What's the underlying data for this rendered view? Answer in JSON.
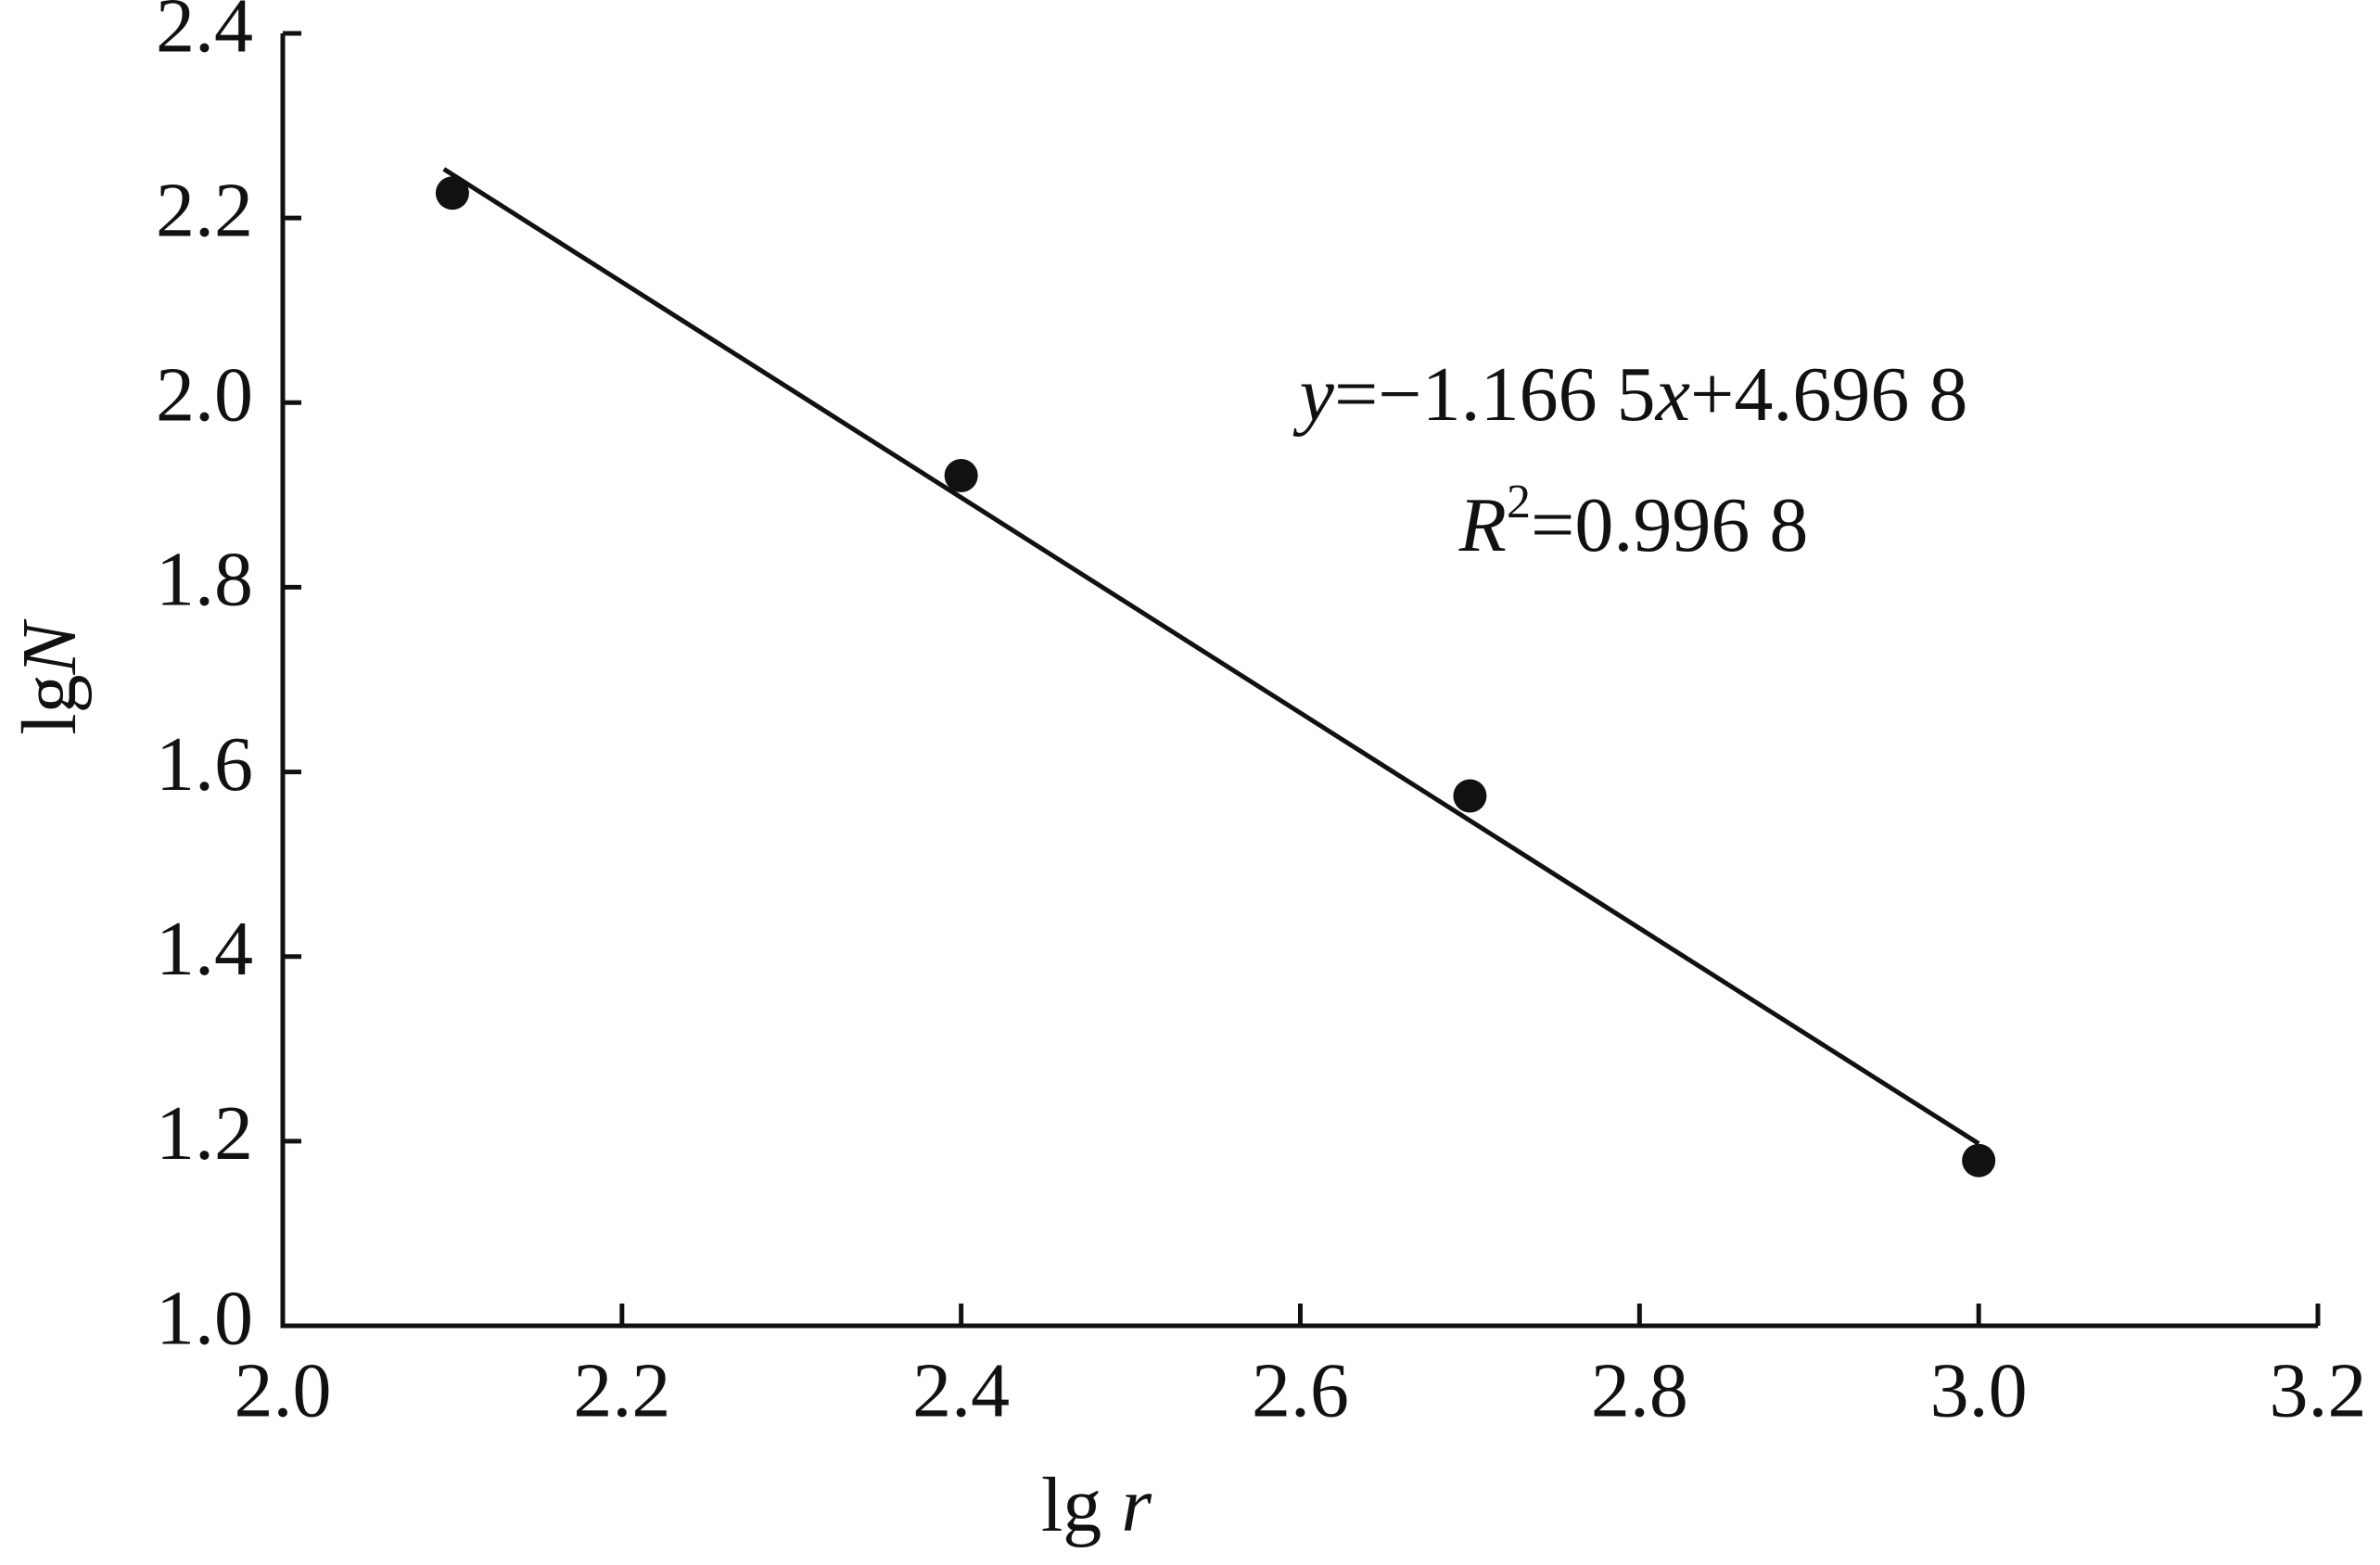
{
  "chart_data": {
    "type": "scatter",
    "x": [
      2.1,
      2.4,
      2.7,
      3.0
    ],
    "values": [
      2.227,
      1.921,
      1.574,
      1.179
    ],
    "color": "#111111",
    "xlim": [
      2.0,
      3.2
    ],
    "ylim": [
      1.0,
      2.4
    ],
    "xticks": [
      {
        "value": 2.0,
        "label": "2.0"
      },
      2.2,
      2.4,
      2.6,
      2.8,
      {
        "value": 3.0,
        "label": "3.0"
      },
      3.2
    ],
    "yticks": [
      {
        "value": 1.0,
        "label": "1.0"
      },
      1.2,
      1.4,
      1.6,
      1.8,
      {
        "value": 2.0,
        "label": "2.0"
      },
      2.2,
      2.4
    ],
    "x_label": [
      {
        "text": "lg "
      },
      {
        "text": "r",
        "italic": true
      }
    ],
    "y_label": [
      {
        "text": "lg"
      },
      {
        "text": "N",
        "italic": true
      }
    ],
    "fit": {
      "slope": -1.1665,
      "intercept": 4.6968,
      "x_range": [
        2.095,
        3.0
      ]
    },
    "equation": [
      {
        "text": "y",
        "italic": true
      },
      {
        "text": "=−1.166 5"
      },
      {
        "text": "x",
        "italic": true
      },
      {
        "text": "+4.696 8"
      }
    ],
    "r_squared": [
      {
        "text": "R",
        "italic": true
      },
      {
        "text": "2",
        "sup": true
      },
      {
        "text": "=0.996 8"
      }
    ]
  }
}
